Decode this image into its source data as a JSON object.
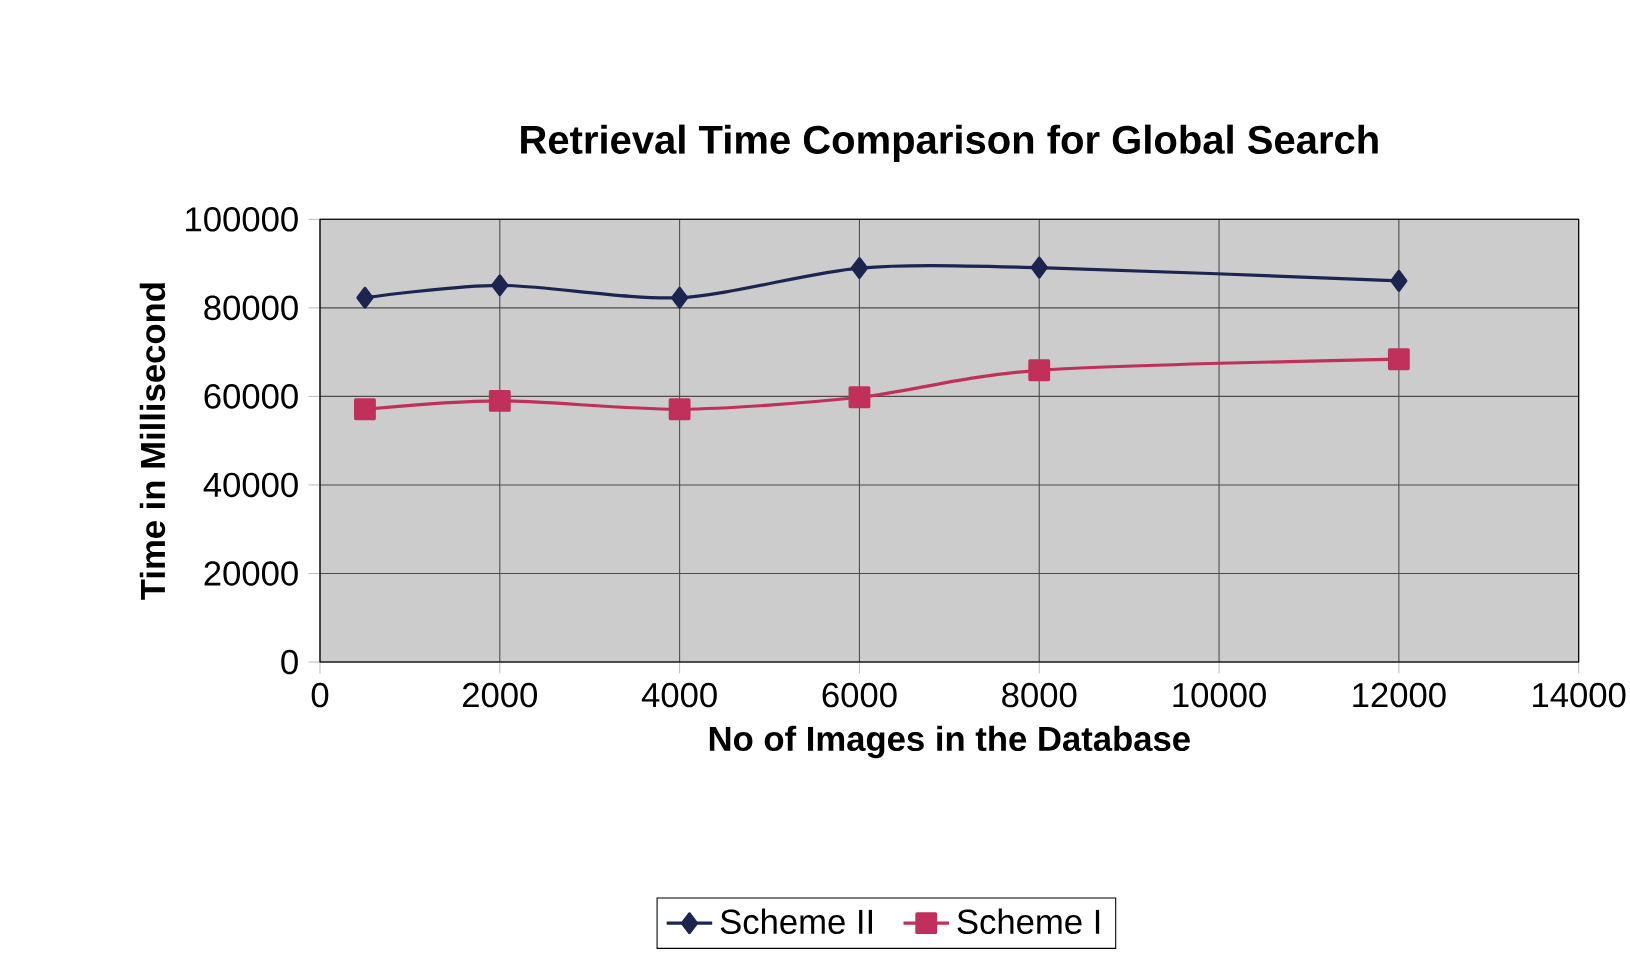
{
  "chart_data": {
    "type": "line",
    "title": "Retrieval Time Comparison for Global Search",
    "xlabel": "No of Images in the Database",
    "ylabel": "Time in Millisecond",
    "x": [
      500,
      2000,
      4000,
      6000,
      8000,
      12000
    ],
    "series": [
      {
        "name": "Scheme II",
        "color": "#1c2450",
        "marker": "diamond",
        "values": [
          82300,
          85100,
          82300,
          89000,
          89100,
          86100
        ]
      },
      {
        "name": "Scheme I",
        "color": "#c0305a",
        "marker": "square",
        "values": [
          57100,
          59000,
          57100,
          59800,
          65900,
          68400
        ]
      }
    ],
    "xlim": [
      0,
      14000
    ],
    "xticks": [
      0,
      2000,
      4000,
      6000,
      8000,
      10000,
      12000,
      14000
    ],
    "ylim": [
      0,
      100000
    ],
    "yticks": [
      0,
      20000,
      40000,
      60000,
      80000,
      100000
    ],
    "grid": true,
    "legend": "bottom",
    "line_style": "solid"
  }
}
